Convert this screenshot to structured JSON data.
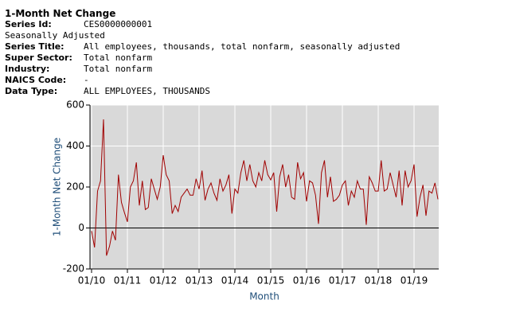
{
  "header": {
    "title": "1-Month Net Change",
    "fields": [
      {
        "label": "Series Id:",
        "value": "CES0000000001"
      },
      {
        "note": "Seasonally Adjusted"
      },
      {
        "label": "Series Title:",
        "value": "All employees, thousands, total nonfarm, seasonally adjusted"
      },
      {
        "label": "Super Sector:",
        "value": "Total nonfarm"
      },
      {
        "label": "Industry:",
        "value": "Total nonfarm"
      },
      {
        "label": "NAICS Code:",
        "value": "-"
      },
      {
        "label": "Data Type:",
        "value": "ALL EMPLOYEES, THOUSANDS"
      }
    ]
  },
  "chart_data": {
    "type": "line",
    "ylabel": "1-Month Net Change",
    "xlabel": "Month",
    "categories": [
      "01/10",
      null,
      null,
      null,
      null,
      null,
      null,
      null,
      null,
      null,
      null,
      null,
      "01/11",
      null,
      null,
      null,
      null,
      null,
      null,
      null,
      null,
      null,
      null,
      null,
      "01/12",
      null,
      null,
      null,
      null,
      null,
      null,
      null,
      null,
      null,
      null,
      null,
      "01/13",
      null,
      null,
      null,
      null,
      null,
      null,
      null,
      null,
      null,
      null,
      null,
      "01/14",
      null,
      null,
      null,
      null,
      null,
      null,
      null,
      null,
      null,
      null,
      null,
      "01/15",
      null,
      null,
      null,
      null,
      null,
      null,
      null,
      null,
      null,
      null,
      null,
      "01/16",
      null,
      null,
      null,
      null,
      null,
      null,
      null,
      null,
      null,
      null,
      null,
      "01/17",
      null,
      null,
      null,
      null,
      null,
      null,
      null,
      null,
      null,
      null,
      null,
      "01/18",
      null,
      null,
      null,
      null,
      null,
      null,
      null,
      null,
      null,
      null,
      null,
      "01/19",
      null,
      null,
      null,
      null,
      null,
      null,
      null,
      null
    ],
    "values": [
      -15,
      -95,
      180,
      230,
      530,
      -135,
      -90,
      -15,
      -60,
      260,
      125,
      75,
      30,
      200,
      230,
      320,
      110,
      230,
      90,
      100,
      240,
      190,
      140,
      200,
      355,
      260,
      230,
      70,
      110,
      80,
      150,
      170,
      190,
      160,
      160,
      240,
      190,
      280,
      135,
      190,
      220,
      170,
      135,
      240,
      180,
      210,
      260,
      70,
      190,
      170,
      270,
      330,
      230,
      310,
      230,
      200,
      270,
      230,
      330,
      260,
      235,
      270,
      80,
      250,
      310,
      200,
      260,
      150,
      140,
      320,
      240,
      270,
      130,
      230,
      220,
      160,
      20,
      270,
      330,
      150,
      250,
      130,
      140,
      160,
      210,
      230,
      110,
      180,
      150,
      230,
      190,
      190,
      15,
      250,
      220,
      180,
      180,
      330,
      180,
      190,
      270,
      210,
      150,
      280,
      110,
      280,
      200,
      230,
      310,
      55,
      150,
      210,
      60,
      180,
      170,
      220,
      140
    ],
    "color": "#a00000",
    "ylim": [
      -200,
      600
    ],
    "yticks": [
      -200,
      0,
      200,
      400,
      600
    ],
    "grid": true
  }
}
